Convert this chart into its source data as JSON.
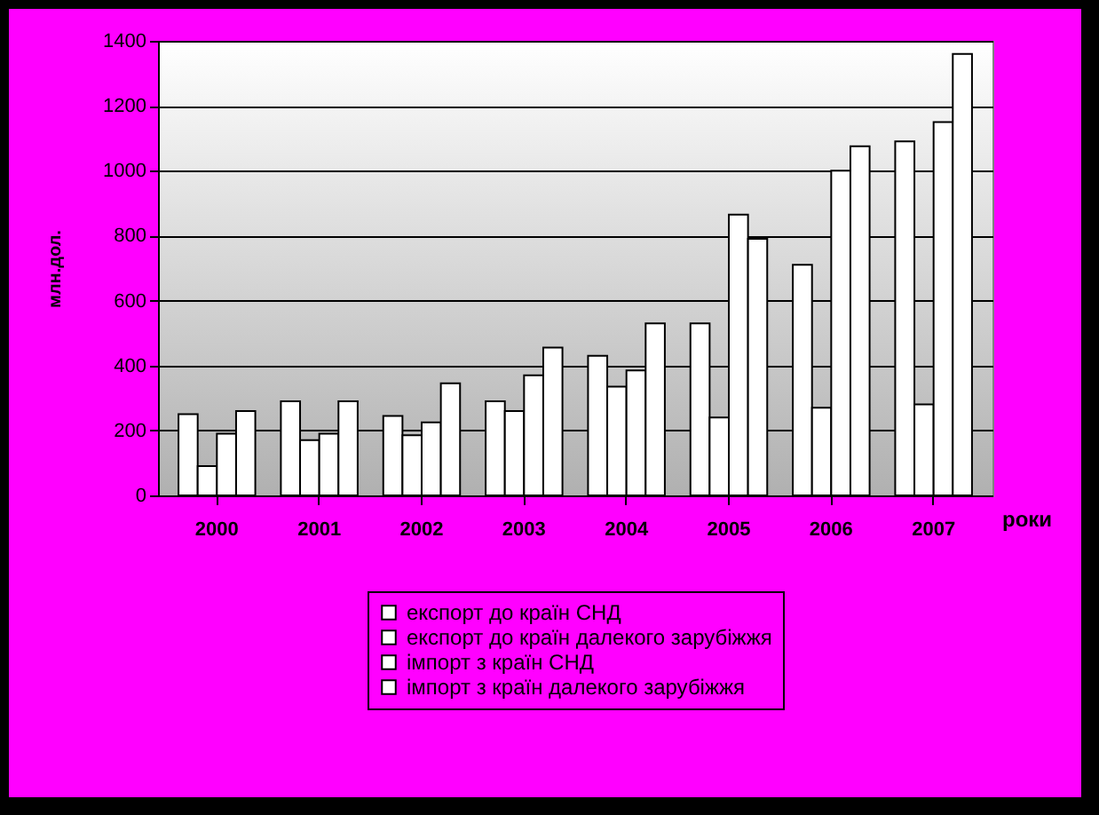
{
  "chart_data": {
    "type": "bar",
    "xlabel": "роки",
    "ylabel": "млн.дол.",
    "categories": [
      "2000",
      "2001",
      "2002",
      "2003",
      "2004",
      "2005",
      "2006",
      "2007"
    ],
    "series": [
      {
        "name": "експорт до країн СНД",
        "color": "#ffffff",
        "values": [
          250,
          290,
          245,
          290,
          430,
          530,
          710,
          1090
        ]
      },
      {
        "name": "експорт до країн далекого зарубіжжя",
        "color": "#ffffff",
        "values": [
          90,
          170,
          185,
          260,
          335,
          240,
          270,
          280
        ]
      },
      {
        "name": "імпорт з країн СНД",
        "color": "#ffffff",
        "values": [
          190,
          190,
          225,
          370,
          385,
          865,
          1000,
          1150
        ]
      },
      {
        "name": "імпорт з країн далекого зарубіжжя",
        "color": "#ffffff",
        "values": [
          260,
          290,
          345,
          455,
          530,
          790,
          1075,
          1360
        ]
      }
    ],
    "ylim": [
      0,
      1400
    ],
    "yticks": [
      0,
      200,
      400,
      600,
      800,
      1000,
      1200,
      1400
    ],
    "grid": "y",
    "legend": "bottom"
  }
}
